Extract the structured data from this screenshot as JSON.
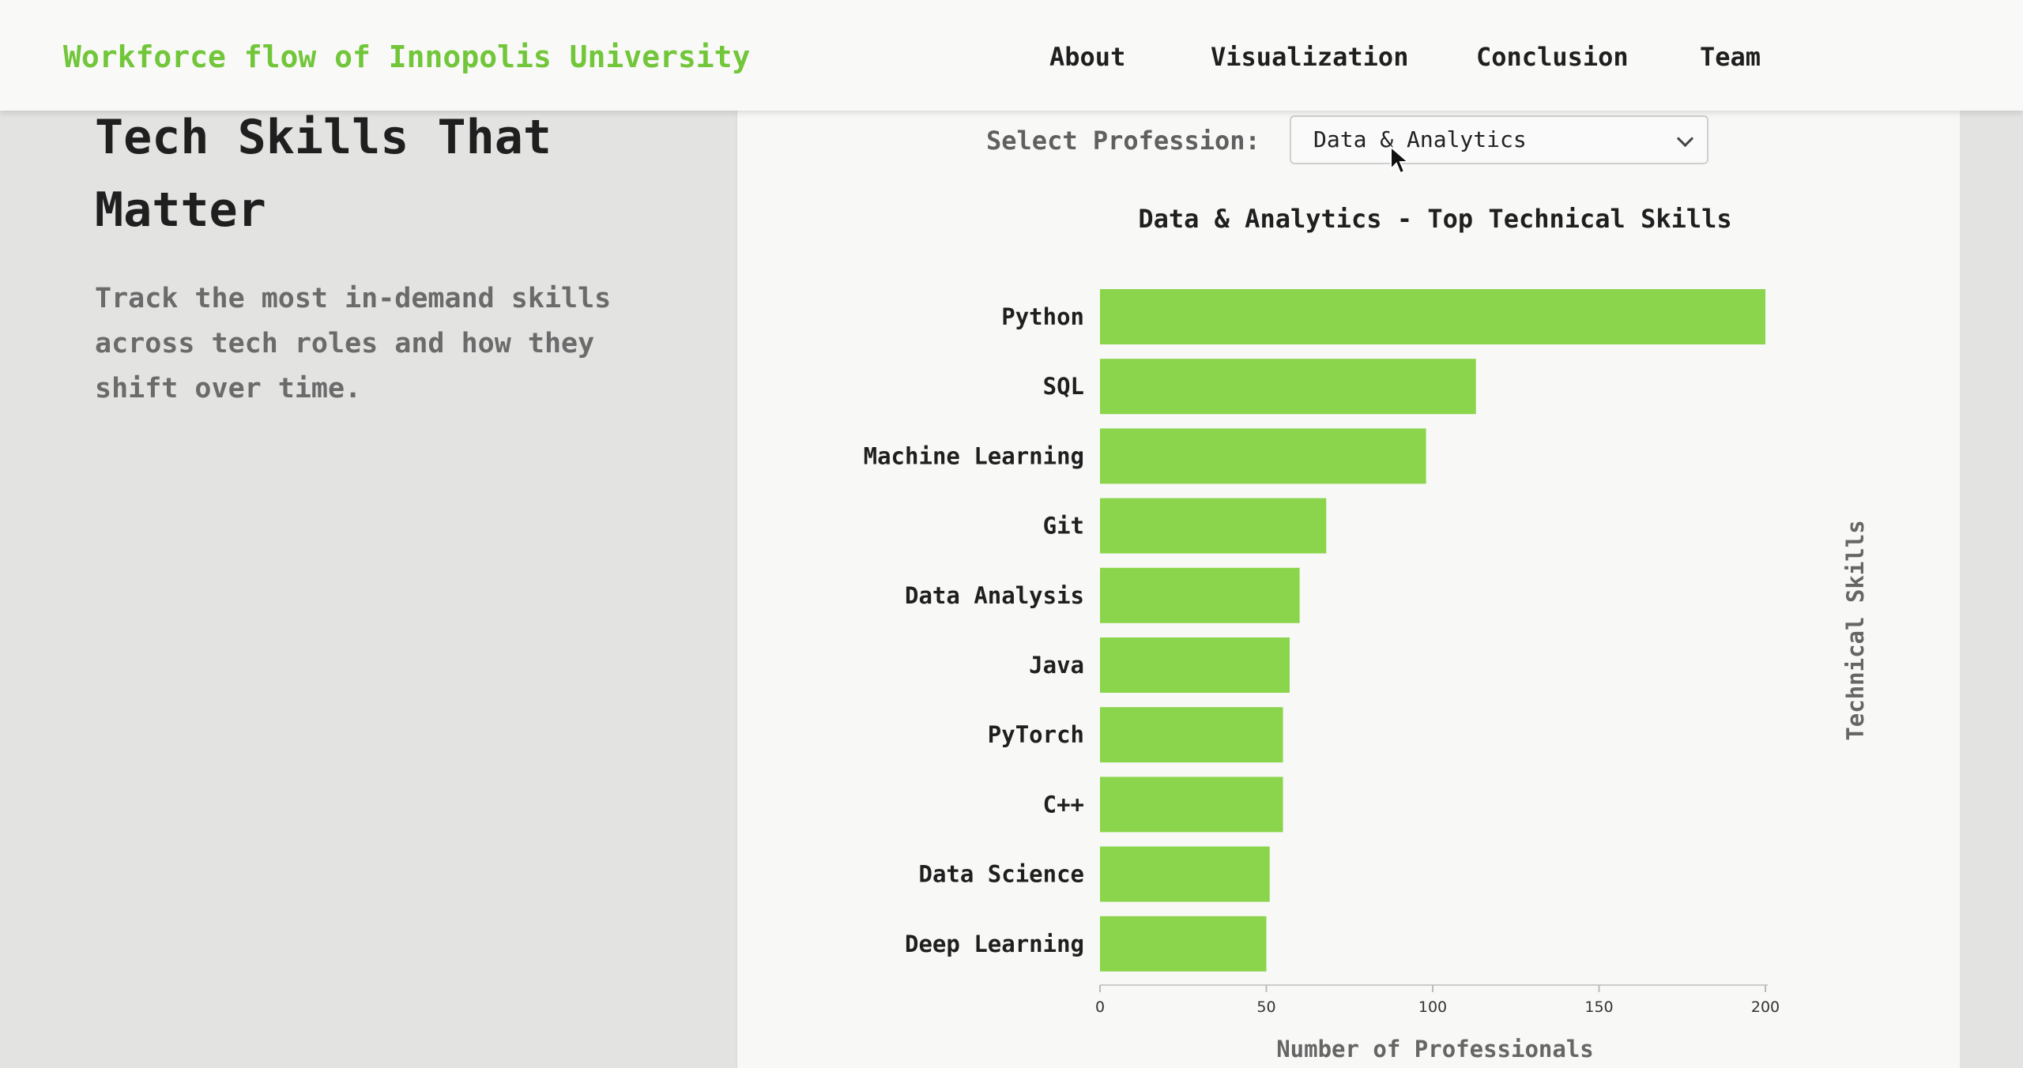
{
  "header": {
    "brand": "Workforce flow of Innopolis University",
    "nav": [
      {
        "label": "About"
      },
      {
        "label": "Visualization"
      },
      {
        "label": "Conclusion"
      },
      {
        "label": "Team"
      }
    ]
  },
  "hero": {
    "title": "Tech Skills That Matter",
    "description": "Track the most in-demand skills across tech roles and how they shift over time."
  },
  "controls": {
    "select_label": "Select Profession:",
    "selected_value": "Data & Analytics"
  },
  "colors": {
    "brand": "#72c63a",
    "bar": "#8bd54c",
    "text": "#1f1f1f"
  },
  "chart_data": {
    "type": "bar",
    "orientation": "horizontal",
    "title": "Data & Analytics - Top Technical Skills",
    "xlabel": "Number of Professionals",
    "ylabel": "Technical Skills",
    "categories": [
      "Python",
      "SQL",
      "Machine Learning",
      "Git",
      "Data Analysis",
      "Java",
      "PyTorch",
      "C++",
      "Data Science",
      "Deep Learning"
    ],
    "values": [
      200,
      113,
      98,
      68,
      60,
      57,
      55,
      55,
      51,
      50
    ],
    "xlim": [
      0,
      200
    ],
    "xticks": [
      "0",
      "50",
      "100",
      "150",
      "200"
    ],
    "grid": false
  }
}
